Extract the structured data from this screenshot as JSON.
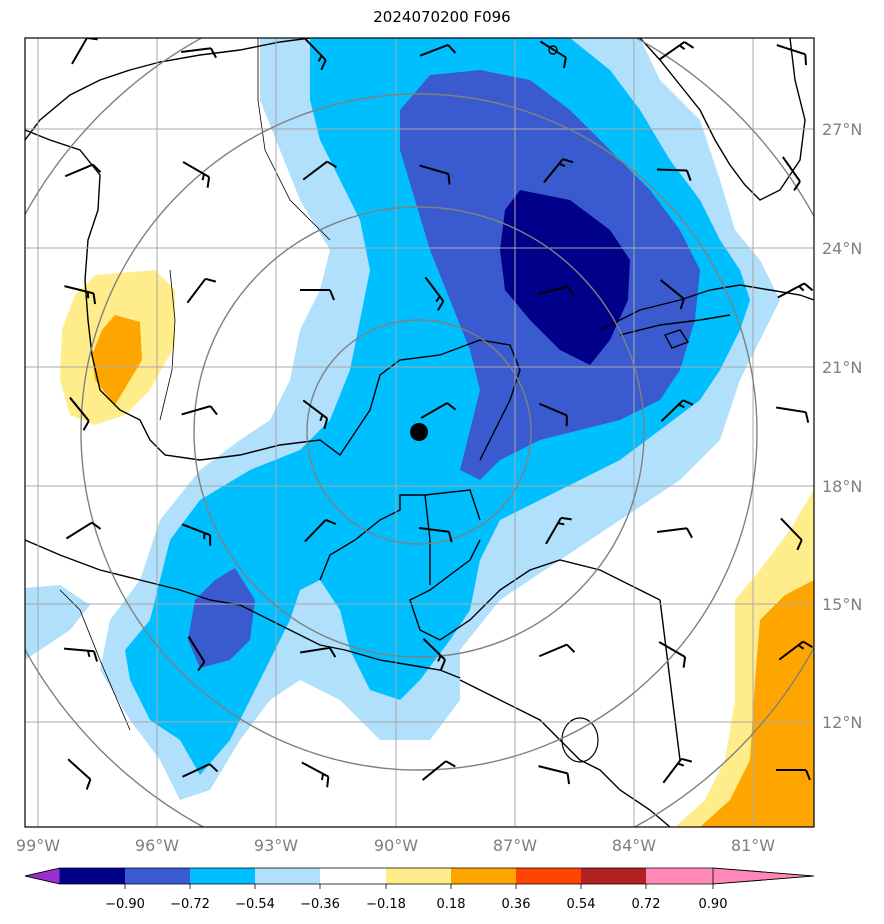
{
  "title": "2024070200 F096",
  "colors": {
    "c_lt_090": "#9b30d0",
    "c_m090_m072": "#00008b",
    "c_m072_m054": "#3a5bd0",
    "c_m054_m036": "#00bfff",
    "c_m036_m018": "#b0e0fb",
    "c_m018_018": "#ffffff",
    "c_018_036": "#ffec8b",
    "c_036_054": "#ffa500",
    "c_054_072": "#ff4500",
    "c_072_090": "#b22222",
    "c_gt_090": "#ff88b8"
  },
  "map": {
    "lon_labels": [
      "99°W",
      "96°W",
      "93°W",
      "90°W",
      "87°W",
      "84°W",
      "81°W"
    ],
    "lat_labels": [
      "27°N",
      "24°N",
      "21°N",
      "18°N",
      "15°N",
      "12°N"
    ],
    "storm_center": {
      "lon": -89.4,
      "lat": 19.4
    },
    "range_rings": "concentric gray circles around storm center"
  },
  "colorbar": {
    "ticks": [
      "−0.90",
      "−0.72",
      "−0.54",
      "−0.36",
      "−0.18",
      "0.18",
      "0.36",
      "0.54",
      "0.72",
      "0.90"
    ],
    "extend": "both"
  }
}
